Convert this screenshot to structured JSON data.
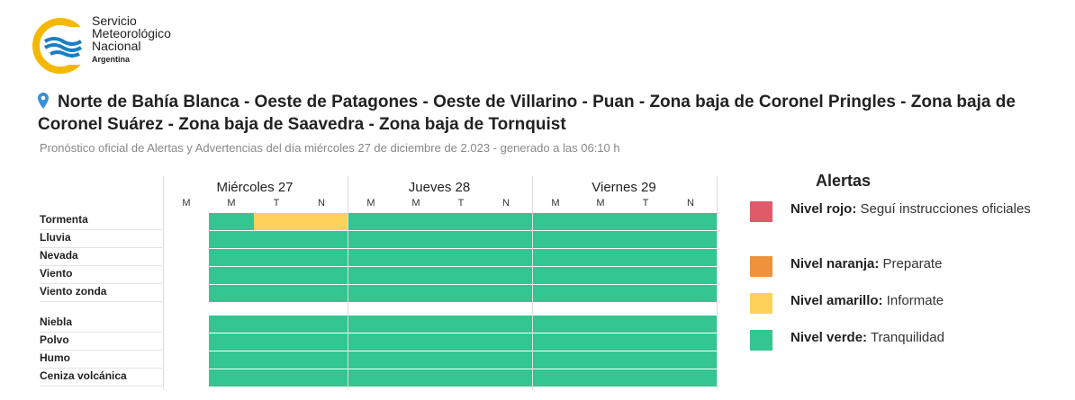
{
  "logo": {
    "line1": "Servicio",
    "line2": "Meteorológico",
    "line3": "Nacional",
    "line4": "Argentina"
  },
  "title": {
    "line1": "Norte de Bahía Blanca - Oeste de Patagones - Oeste de Villarino - Puan - Zona baja de Coronel Pringles - Zona baja de",
    "line2": "Coronel Suárez - Zona baja de Saavedra - Zona baja de Tornquist"
  },
  "subtitle": "Pronóstico oficial de Alertas y Advertencias del día miércoles 27 de diciembre de 2.023 - generado a las 06:10 h",
  "days": [
    {
      "label": "Miércoles 27",
      "periods": [
        "M",
        "M",
        "T",
        "N"
      ]
    },
    {
      "label": "Jueves 28",
      "periods": [
        "M",
        "M",
        "T",
        "N"
      ]
    },
    {
      "label": "Viernes 29",
      "periods": [
        "M",
        "M",
        "T",
        "N"
      ]
    }
  ],
  "phenomena": [
    {
      "name": "Tormenta",
      "levels": [
        null,
        "verde",
        "amarillo",
        "amarillo",
        "verde",
        "verde",
        "verde",
        "verde",
        "verde",
        "verde",
        "verde",
        "verde"
      ]
    },
    {
      "name": "Lluvia",
      "levels": [
        null,
        "verde",
        "verde",
        "verde",
        "verde",
        "verde",
        "verde",
        "verde",
        "verde",
        "verde",
        "verde",
        "verde"
      ]
    },
    {
      "name": "Nevada",
      "levels": [
        null,
        "verde",
        "verde",
        "verde",
        "verde",
        "verde",
        "verde",
        "verde",
        "verde",
        "verde",
        "verde",
        "verde"
      ]
    },
    {
      "name": "Viento",
      "levels": [
        null,
        "verde",
        "verde",
        "verde",
        "verde",
        "verde",
        "verde",
        "verde",
        "verde",
        "verde",
        "verde",
        "verde"
      ]
    },
    {
      "name": "Viento zonda",
      "levels": [
        null,
        "verde",
        "verde",
        "verde",
        "verde",
        "verde",
        "verde",
        "verde",
        "verde",
        "verde",
        "verde",
        "verde"
      ]
    },
    {
      "name": "Niebla",
      "levels": [
        null,
        "verde",
        "verde",
        "verde",
        "verde",
        "verde",
        "verde",
        "verde",
        "verde",
        "verde",
        "verde",
        "verde"
      ]
    },
    {
      "name": "Polvo",
      "levels": [
        null,
        "verde",
        "verde",
        "verde",
        "verde",
        "verde",
        "verde",
        "verde",
        "verde",
        "verde",
        "verde",
        "verde"
      ]
    },
    {
      "name": "Humo",
      "levels": [
        null,
        "verde",
        "verde",
        "verde",
        "verde",
        "verde",
        "verde",
        "verde",
        "verde",
        "verde",
        "verde",
        "verde"
      ]
    },
    {
      "name": "Ceniza volcánica",
      "levels": [
        null,
        "verde",
        "verde",
        "verde",
        "verde",
        "verde",
        "verde",
        "verde",
        "verde",
        "verde",
        "verde",
        "verde"
      ]
    }
  ],
  "legend": {
    "title": "Alertas",
    "items": [
      {
        "name": "Nivel rojo:",
        "text": "Seguí instrucciones oficiales",
        "color": "#e05a6a"
      },
      {
        "name": "Nivel naranja:",
        "text": "Preparate",
        "color": "#f0913c"
      },
      {
        "name": "Nivel amarillo:",
        "text": "Informate",
        "color": "#fdd25a"
      },
      {
        "name": "Nivel verde:",
        "text": "Tranquilidad",
        "color": "#33c691"
      }
    ]
  },
  "colors": {
    "brand_blue": "#1a7fc4",
    "brand_yellow": "#f5b800",
    "verde": "#33c691",
    "amarillo": "#fdd25a"
  }
}
